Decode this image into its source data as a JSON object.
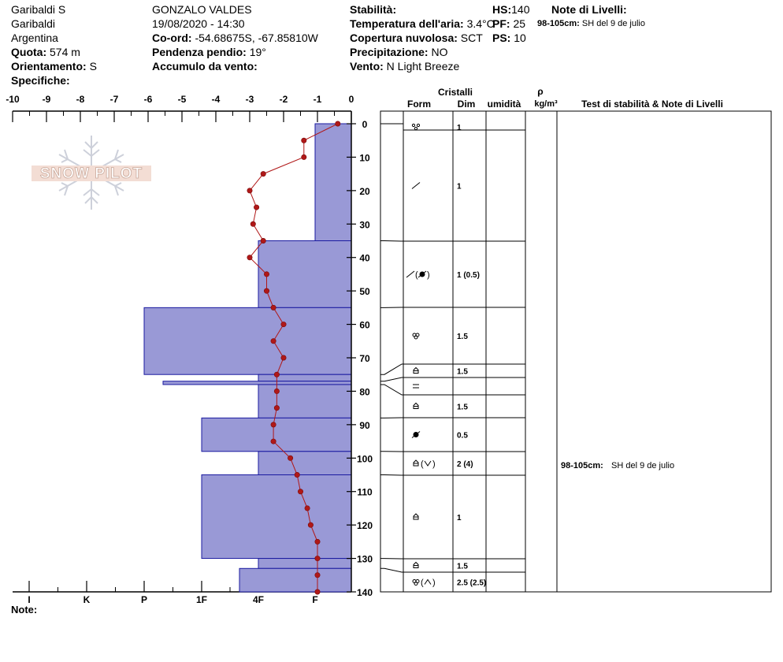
{
  "header": {
    "col1": [
      "Garibaldi S",
      "Garibaldi",
      "Argentina"
    ],
    "quota_label": "Quota:",
    "quota_value": "574 m",
    "orient_label": "Orientamento:",
    "orient_value": "S",
    "spec_label": "Specifiche:",
    "observer": "GONZALO VALDES",
    "datetime": "19/08/2020 - 14:30",
    "coord_label": "Co-ord:",
    "coord_value": "-54.68675S, -67.85810W",
    "slope_label": "Pendenza pendio:",
    "slope_value": "19°",
    "wind_load_label": "Accumulo da vento:",
    "stab_label": "Stabilità:",
    "airtemp_label": "Temperatura dell'aria:",
    "airtemp_value": "3.4°C",
    "cloud_label": "Copertura nuvolosa:",
    "cloud_value": "SCT",
    "precip_label": "Precipitazione:",
    "precip_value": "NO",
    "wind_label": "Vento:",
    "wind_value": "N Light Breeze",
    "hs_label": "HS:",
    "hs_value": "140",
    "pf_label": "PF:",
    "pf_value": "25",
    "ps_label": "PS:",
    "ps_value": "10",
    "notes_title": "Note di Livelli",
    "top_note_range": "98-105cm:",
    "top_note_text": "SH del 9 de julio"
  },
  "logo_text": "SNOW PILOT",
  "note_label": "Note:",
  "columns": {
    "cristalli": "Cristalli",
    "form": "Form",
    "dim": "Dim",
    "umidita": "umidità",
    "rho": "ρ",
    "rho_unit": "kg/m³",
    "test": "Test di stabilità & Note di Livelli"
  },
  "colors": {
    "hardness_fill": "#9999d6",
    "hardness_stroke": "#1a1aa0",
    "temp": "#b01818"
  },
  "chart_data": {
    "type": "snow-profile",
    "x_temp_ticks": [
      "-10",
      "-9",
      "-8",
      "-7",
      "-6",
      "-5",
      "-4",
      "-3",
      "-2",
      "-1",
      "0"
    ],
    "xlim": [
      -10,
      0
    ],
    "hardness_ticks": [
      "I",
      "K",
      "P",
      "1F",
      "4F",
      "F"
    ],
    "ylim": [
      0,
      140
    ],
    "y_ticks": [
      "0",
      "10",
      "20",
      "30",
      "40",
      "50",
      "60",
      "70",
      "80",
      "90",
      "100",
      "110",
      "120",
      "130",
      "140"
    ],
    "temperature_profile": [
      {
        "depth": 0,
        "temp": -0.4
      },
      {
        "depth": 5,
        "temp": -1.4
      },
      {
        "depth": 10,
        "temp": -1.4
      },
      {
        "depth": 15,
        "temp": -2.6
      },
      {
        "depth": 20,
        "temp": -3.0
      },
      {
        "depth": 25,
        "temp": -2.8
      },
      {
        "depth": 30,
        "temp": -2.9
      },
      {
        "depth": 35,
        "temp": -2.6
      },
      {
        "depth": 40,
        "temp": -3.0
      },
      {
        "depth": 45,
        "temp": -2.5
      },
      {
        "depth": 50,
        "temp": -2.5
      },
      {
        "depth": 55,
        "temp": -2.3
      },
      {
        "depth": 60,
        "temp": -2.0
      },
      {
        "depth": 65,
        "temp": -2.3
      },
      {
        "depth": 70,
        "temp": -2.0
      },
      {
        "depth": 75,
        "temp": -2.2
      },
      {
        "depth": 80,
        "temp": -2.2
      },
      {
        "depth": 85,
        "temp": -2.2
      },
      {
        "depth": 90,
        "temp": -2.3
      },
      {
        "depth": 95,
        "temp": -2.3
      },
      {
        "depth": 100,
        "temp": -1.8
      },
      {
        "depth": 105,
        "temp": -1.6
      },
      {
        "depth": 110,
        "temp": -1.5
      },
      {
        "depth": 115,
        "temp": -1.3
      },
      {
        "depth": 120,
        "temp": -1.2
      },
      {
        "depth": 125,
        "temp": -1.0
      },
      {
        "depth": 130,
        "temp": -1.0
      },
      {
        "depth": 135,
        "temp": -1.0
      },
      {
        "depth": 140,
        "temp": -1.0
      }
    ],
    "hardness_layers": [
      {
        "top": 0,
        "bottom": 35,
        "hardness": "F"
      },
      {
        "top": 35,
        "bottom": 55,
        "hardness": "4F"
      },
      {
        "top": 55,
        "bottom": 75,
        "hardness": "P"
      },
      {
        "top": 75,
        "bottom": 77,
        "hardness": "4F"
      },
      {
        "top": 77,
        "bottom": 78,
        "hardness": "P-"
      },
      {
        "top": 78,
        "bottom": 88,
        "hardness": "4F"
      },
      {
        "top": 88,
        "bottom": 98,
        "hardness": "1F"
      },
      {
        "top": 98,
        "bottom": 105,
        "hardness": "4F"
      },
      {
        "top": 105,
        "bottom": 130,
        "hardness": "1F"
      },
      {
        "top": 130,
        "bottom": 133,
        "hardness": "4F"
      },
      {
        "top": 133,
        "bottom": 140,
        "hardness": "4F-"
      }
    ],
    "crystal_layers": [
      {
        "top": 0,
        "bottom": 2,
        "form": "precip",
        "dim": "1"
      },
      {
        "top": 2,
        "bottom": 35,
        "form": "decomp",
        "dim": "1"
      },
      {
        "top": 35,
        "bottom": 55,
        "form": "decomp-rounded",
        "dim": "1 (0.5)"
      },
      {
        "top": 55,
        "bottom": 72,
        "form": "melt",
        "dim": "1.5"
      },
      {
        "top": 72,
        "bottom": 76,
        "form": "facet",
        "dim": "1.5"
      },
      {
        "top": 76,
        "bottom": 81,
        "form": "ice",
        "dim": ""
      },
      {
        "top": 81,
        "bottom": 88,
        "form": "facet",
        "dim": "1.5"
      },
      {
        "top": 88,
        "bottom": 98,
        "form": "rounded",
        "dim": "0.5"
      },
      {
        "top": 98,
        "bottom": 105,
        "form": "facet-hoar",
        "dim": "2 (4)"
      },
      {
        "top": 105,
        "bottom": 130,
        "form": "facet",
        "dim": "1"
      },
      {
        "top": 130,
        "bottom": 134,
        "form": "facet",
        "dim": "1.5"
      },
      {
        "top": 134,
        "bottom": 140,
        "form": "melt-cup",
        "dim": "2.5 (2.5)"
      }
    ],
    "level_notes": [
      {
        "depth": 102,
        "range": "98-105cm:",
        "text": "SH del 9 de julio"
      }
    ]
  }
}
